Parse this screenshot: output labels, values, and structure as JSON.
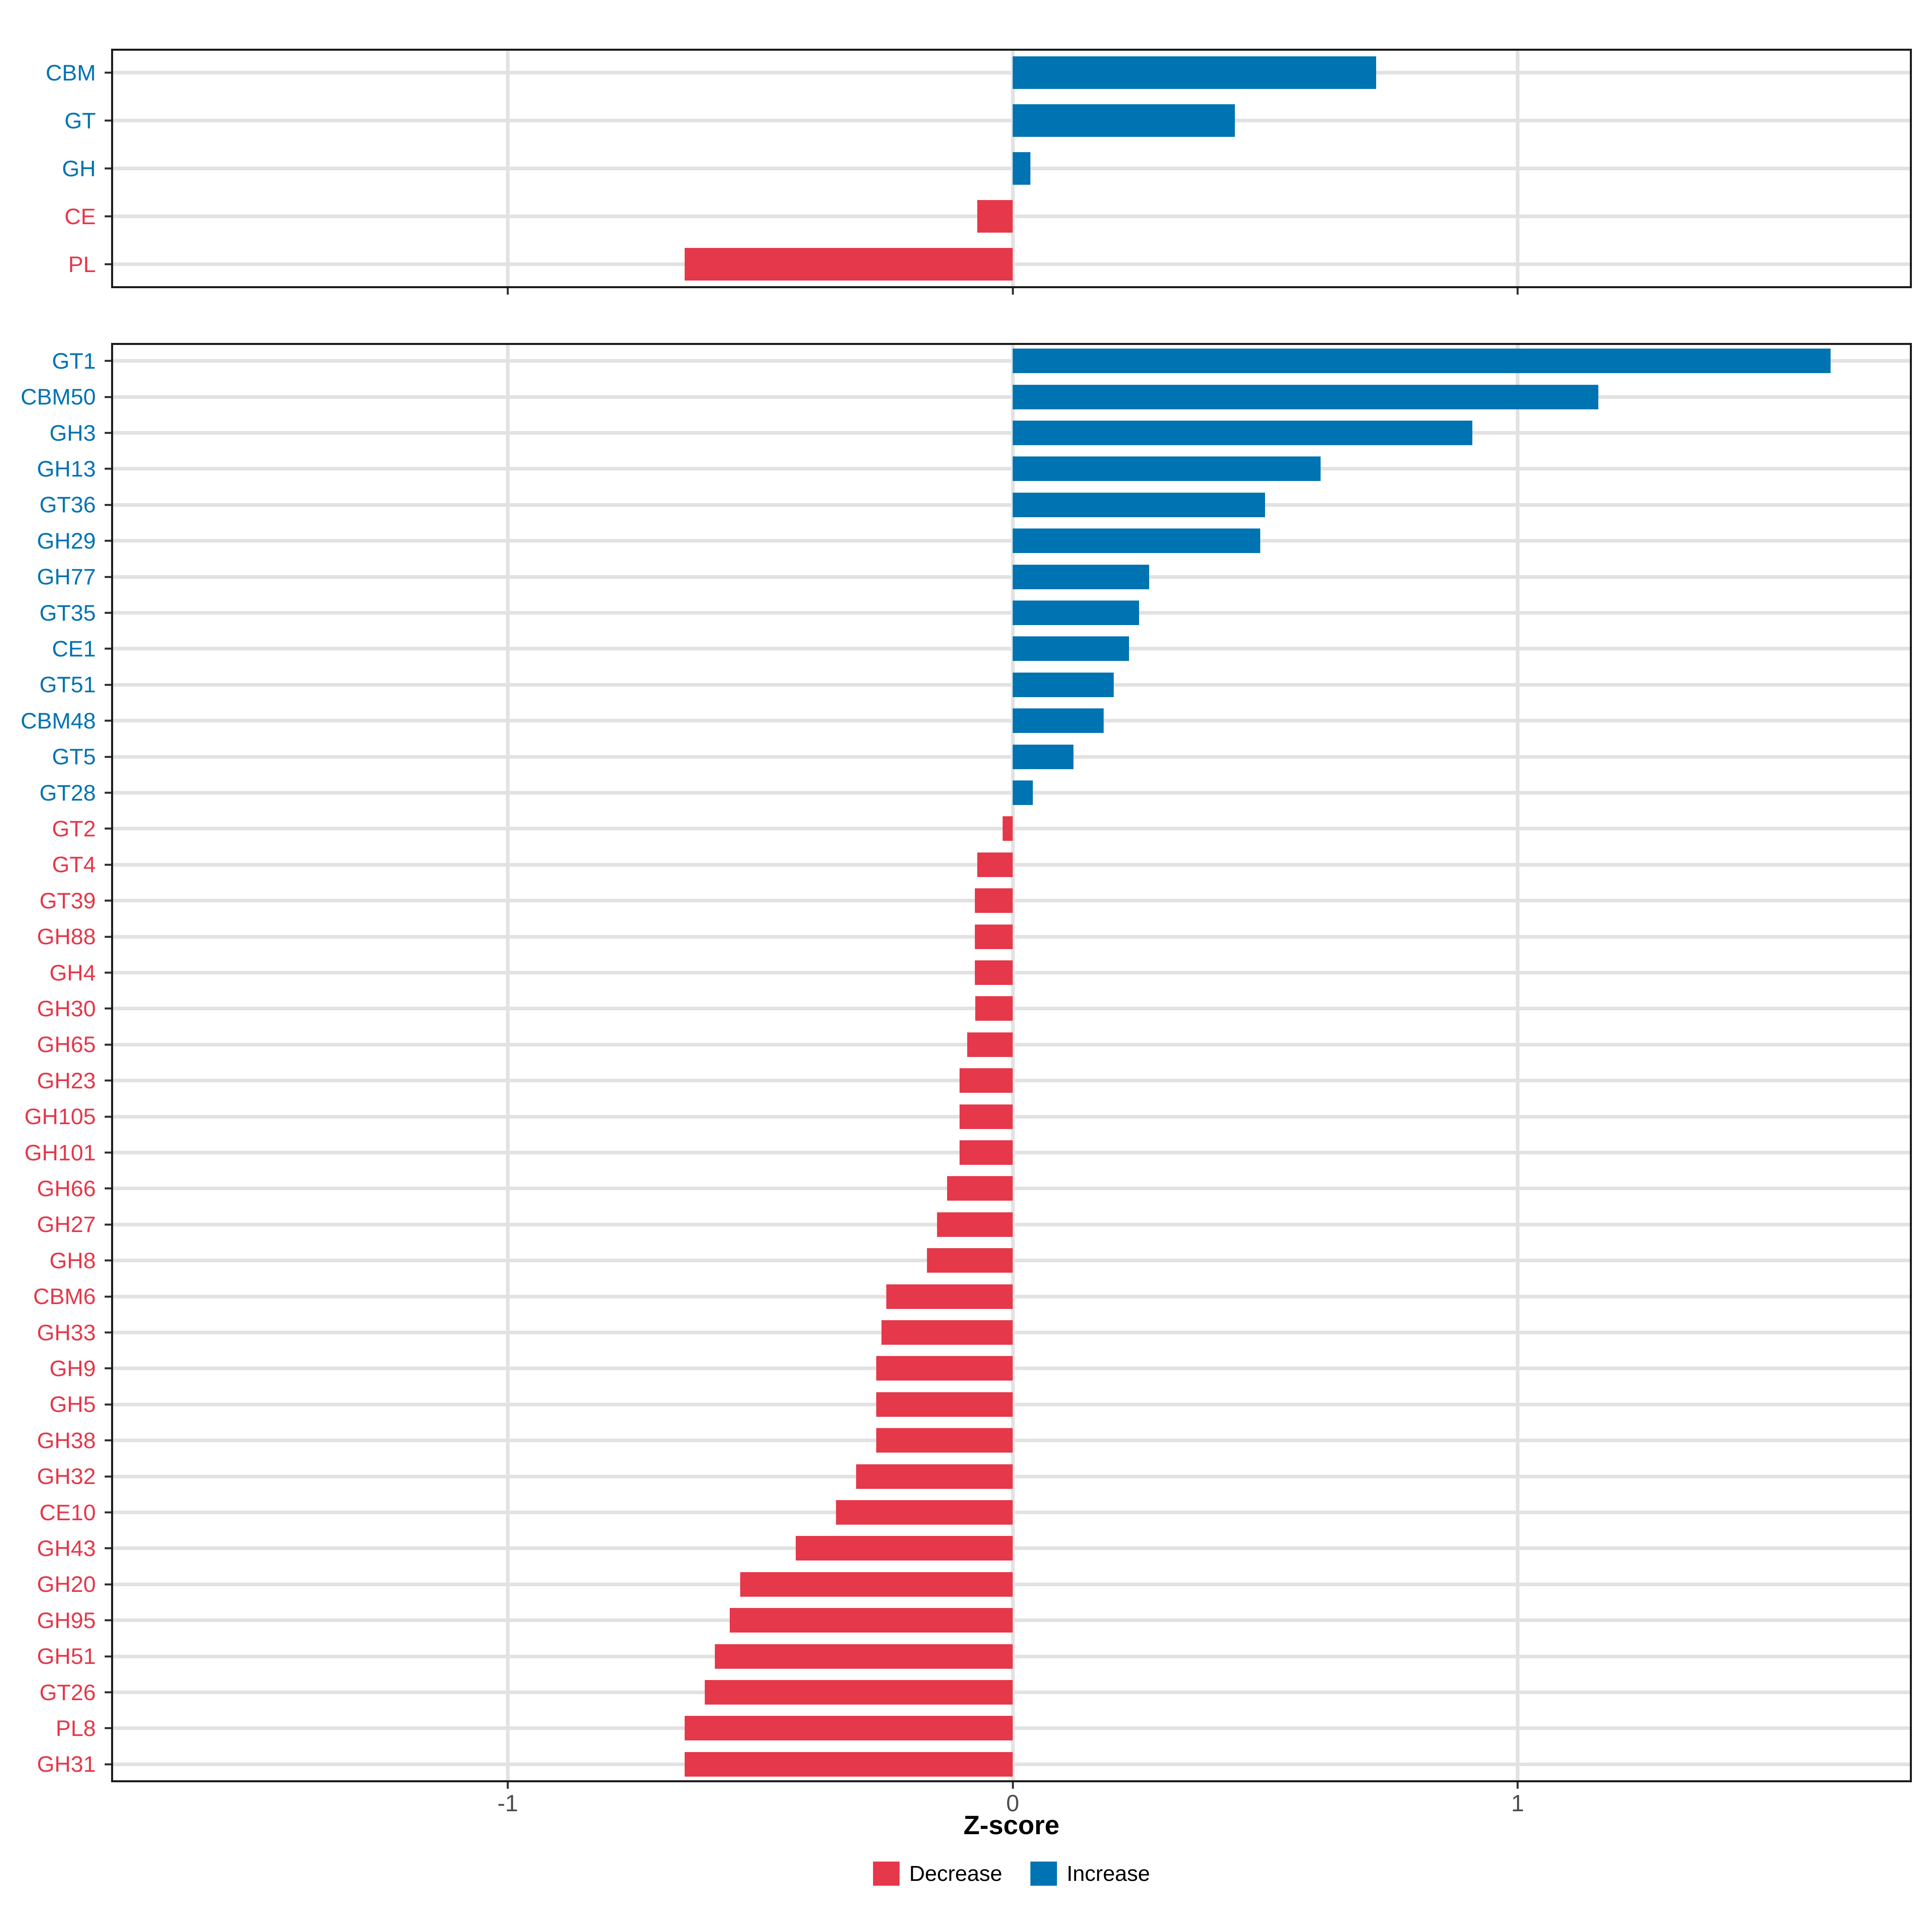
{
  "chart_data": {
    "type": "bar",
    "orientation": "horizontal",
    "xlabel": "Z-score",
    "x_tick_labels": [
      "-1",
      "0",
      "1"
    ],
    "x_tick_values": [
      -1,
      0,
      1
    ],
    "xlim": [
      -1.79,
      1.78
    ],
    "grid": "major gridlines at each category row and at x ticks",
    "legend_position": "bottom-center",
    "colors": {
      "increase": "#0073B2",
      "decrease": "#E5384A"
    },
    "legend": [
      {
        "label": "Decrease",
        "color": "#E5384A",
        "key": "decrease"
      },
      {
        "label": "Increase",
        "color": "#0073B2",
        "key": "increase"
      }
    ],
    "panels": [
      {
        "name": "cazyme-class-panel",
        "categories": [
          "CBM",
          "GT",
          "GH",
          "CE",
          "PL"
        ],
        "values": [
          0.72,
          0.44,
          0.035,
          -0.07,
          -0.65
        ]
      },
      {
        "name": "cazyme-family-panel",
        "categories": [
          "GT1",
          "CBM50",
          "GH3",
          "GH13",
          "GT36",
          "GH29",
          "GH77",
          "GT35",
          "CE1",
          "GT51",
          "CBM48",
          "GT5",
          "GT28",
          "GT2",
          "GT4",
          "GT39",
          "GH88",
          "GH4",
          "GH30",
          "GH65",
          "GH23",
          "GH105",
          "GH101",
          "GH66",
          "GH27",
          "GH8",
          "CBM6",
          "GH33",
          "GH9",
          "GH5",
          "GH38",
          "GH32",
          "CE10",
          "GH43",
          "GH20",
          "GH95",
          "GH51",
          "GT26",
          "PL8",
          "GH31"
        ],
        "values": [
          1.62,
          1.16,
          0.91,
          0.61,
          0.5,
          0.49,
          0.27,
          0.25,
          0.23,
          0.2,
          0.18,
          0.12,
          0.04,
          -0.02,
          -0.07,
          -0.075,
          -0.075,
          -0.075,
          -0.074,
          -0.09,
          -0.105,
          -0.105,
          -0.105,
          -0.13,
          -0.15,
          -0.17,
          -0.25,
          -0.26,
          -0.27,
          -0.27,
          -0.27,
          -0.31,
          -0.35,
          -0.43,
          -0.54,
          -0.56,
          -0.59,
          -0.61,
          -0.65,
          -0.65
        ]
      }
    ]
  }
}
